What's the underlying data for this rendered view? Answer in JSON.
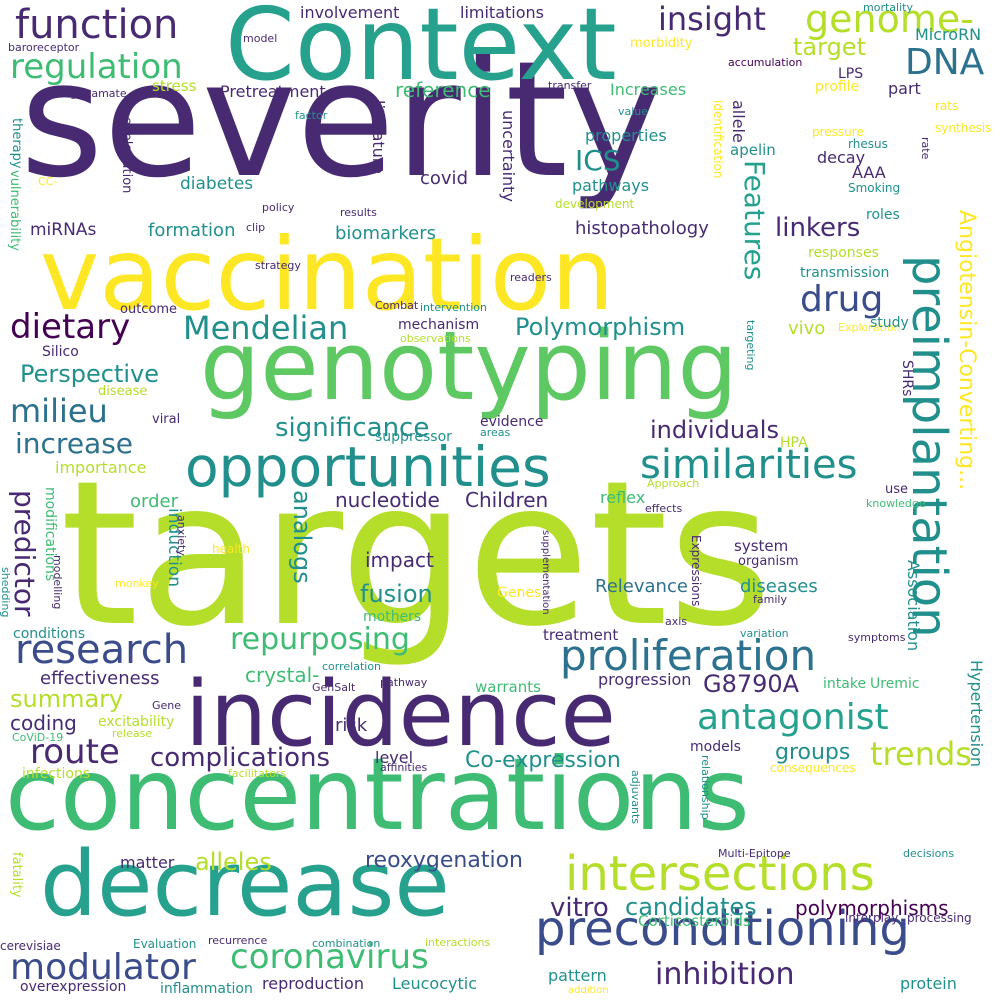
{
  "colors": {
    "dark_purple": "#482a72",
    "deep_purple": "#440154",
    "indigo": "#3b4c8a",
    "blue": "#31688e",
    "steel_blue": "#2c718e",
    "teal": "#21908d",
    "sea_green": "#25a18e",
    "green": "#3fbc73",
    "light_green": "#5ec962",
    "lime": "#8fd744",
    "yellow_green": "#b5de2b",
    "yellow": "#fde725"
  },
  "words": [
    "severity",
    "targets",
    "Context",
    "vaccination",
    "genotyping",
    "concentrations",
    "incidence",
    "decrease",
    "opportunities",
    "preimplantation",
    "preconditioning",
    "proliferation",
    "intersections",
    "similarities",
    "function",
    "regulation",
    "genome-",
    "DNA",
    "insight",
    "target",
    "Mendelian",
    "dietary",
    "drug",
    "milieu",
    "research",
    "modulator",
    "coronavirus",
    "antagonist",
    "repurposing",
    "Polymorphism",
    "Features",
    "Angiotensin-Converting...",
    "route",
    "complications",
    "inhibition",
    "trends",
    "significance",
    "increase",
    "individuals",
    "ICS",
    "linkers",
    "Perspective",
    "predictor",
    "analogs",
    "nucleotide",
    "Children",
    "G8790A",
    "Co-expression",
    "reoxygenation",
    "alleles",
    "summary",
    "fusion",
    "impact",
    "vitro",
    "candidates",
    "polymorphisms",
    "Relevance",
    "diseases",
    "groups",
    "crystal-",
    "effectiveness",
    "coding",
    "excitability",
    "risk",
    "warrants",
    "progression",
    "Hypertension",
    "Association",
    "histopathology",
    "formation",
    "biomarkers",
    "diabetes",
    "miRNAs",
    "reference",
    "Increases",
    "properties",
    "pathways",
    "covid",
    "literature",
    "uncertainty",
    "allele",
    "apelin",
    "decay",
    "AAA",
    "Smoking",
    "LPS",
    "part",
    "profile",
    "MicroRN",
    "accumulation",
    "limitations",
    "involvement",
    "morbidity",
    "mortality",
    "stress",
    "Pretreatment",
    "explanation",
    "therapy",
    "baroreceptor",
    "glutamate",
    "model",
    "transfer",
    "value",
    "factor",
    "identification",
    "rhesus",
    "rate",
    "synthesis",
    "rats",
    "pressure",
    "CC-",
    "vulnerability",
    "policy",
    "results",
    "clip",
    "development",
    "strategy",
    "readers",
    "Combat",
    "intervention",
    "observations",
    "mechanism",
    "Silico",
    "outcome",
    "vivo",
    "Exploration",
    "targeting",
    "SHRs",
    "responses",
    "transmission",
    "study",
    "roles",
    "order",
    "reflex",
    "evidence",
    "suppressor",
    "areas",
    "viral",
    "disease",
    "importance",
    "HPA",
    "Approach",
    "use",
    "knowledge",
    "effects",
    "induction",
    "modifications",
    "modelling",
    "shedding",
    "anxiety",
    "health",
    "monkey",
    "supplementation",
    "Expressions",
    "system",
    "organism",
    "family",
    "Genes",
    "mothers",
    "conditions",
    "treatment",
    "axis",
    "variation",
    "symptoms",
    "pathway",
    "GenSalt",
    "correlation",
    "intake",
    "Uremic",
    "Gene",
    "release",
    "CoViD-19",
    "infections",
    "facilitators",
    "affinities",
    "level",
    "models",
    "relationship",
    "consequences",
    "adjuvants",
    "Multi-Epitope",
    "decisions",
    "matter",
    "fatality",
    "Corticosteroids",
    "interplay",
    "processing",
    "Evaluation",
    "recurrence",
    "combination",
    "interactions",
    "cerevisiae",
    "overexpression",
    "inflammation",
    "reproduction",
    "Leucocytic",
    "pattern",
    "protein",
    "addition"
  ]
}
